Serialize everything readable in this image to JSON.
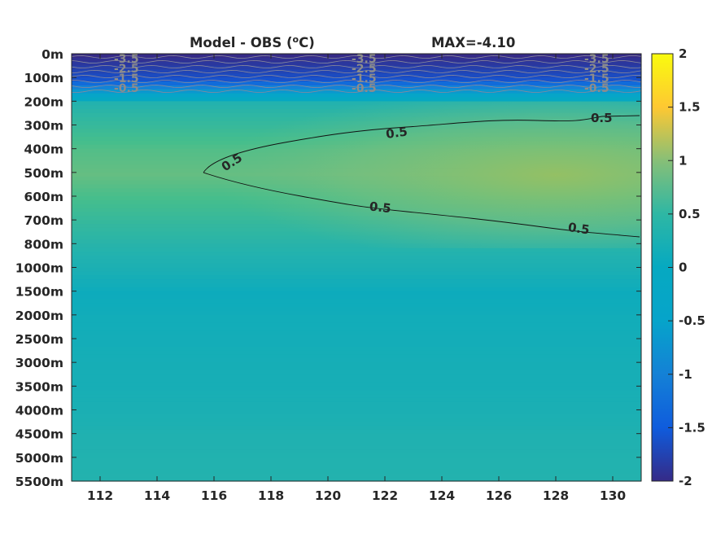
{
  "chart_data": {
    "type": "heatmap",
    "title": "Model - OBS (°C)",
    "title_parts": {
      "text": "Model - OBS (",
      "superscript": "o",
      "unit": "C)"
    },
    "annotation": "MAX=-4.10",
    "x": {
      "ticks": [
        112,
        114,
        116,
        118,
        120,
        122,
        124,
        126,
        128,
        130
      ],
      "range": [
        111,
        131
      ]
    },
    "y": {
      "ticks": [
        "0m",
        "100m",
        "200m",
        "300m",
        "400m",
        "500m",
        "600m",
        "700m",
        "800m",
        "1000m",
        "1500m",
        "2000m",
        "2500m",
        "3000m",
        "3500m",
        "4000m",
        "4500m",
        "5000m",
        "5500m"
      ],
      "reversed": true
    },
    "colorbar": {
      "range": [
        -2,
        2
      ],
      "ticks": [
        "2",
        "1.5",
        "1",
        "0.5",
        "0",
        "-0.5",
        "-1",
        "-1.5",
        "-2"
      ],
      "colormap": "parula"
    },
    "profile_by_depth": [
      {
        "depth": "0m",
        "value": -2.0
      },
      {
        "depth": "100m",
        "value": -1.6
      },
      {
        "depth": "200m",
        "value": 0.25
      },
      {
        "depth": "300m",
        "value": 0.4
      },
      {
        "depth": "400m",
        "value": 0.55
      },
      {
        "depth": "500m",
        "value": 0.62
      },
      {
        "depth": "600m",
        "value": 0.5
      },
      {
        "depth": "700m",
        "value": 0.38
      },
      {
        "depth": "800m",
        "value": 0.28
      },
      {
        "depth": "1000m",
        "value": 0.18
      },
      {
        "depth": "1500m",
        "value": 0.06
      },
      {
        "depth": "2000m",
        "value": 0.1
      },
      {
        "depth": "2500m",
        "value": 0.12
      },
      {
        "depth": "3000m",
        "value": 0.14
      },
      {
        "depth": "3500m",
        "value": 0.15
      },
      {
        "depth": "4000m",
        "value": 0.18
      },
      {
        "depth": "4500m",
        "value": 0.22
      },
      {
        "depth": "5000m",
        "value": 0.24
      },
      {
        "depth": "5500m",
        "value": 0.25
      }
    ],
    "contour_labels": {
      "black": [
        "0.5",
        "0.5",
        "0.5",
        "0.5",
        "0.5"
      ],
      "gray": [
        "-3.5",
        "-2.5",
        "-1.5",
        "-0.5"
      ]
    },
    "colors": {
      "parula": [
        "#352a87",
        "#0f5cdd",
        "#1481d6",
        "#06a4ca",
        "#2eb7a4",
        "#87bf77",
        "#d1bb59",
        "#fec832",
        "#f9fb0e"
      ]
    }
  }
}
